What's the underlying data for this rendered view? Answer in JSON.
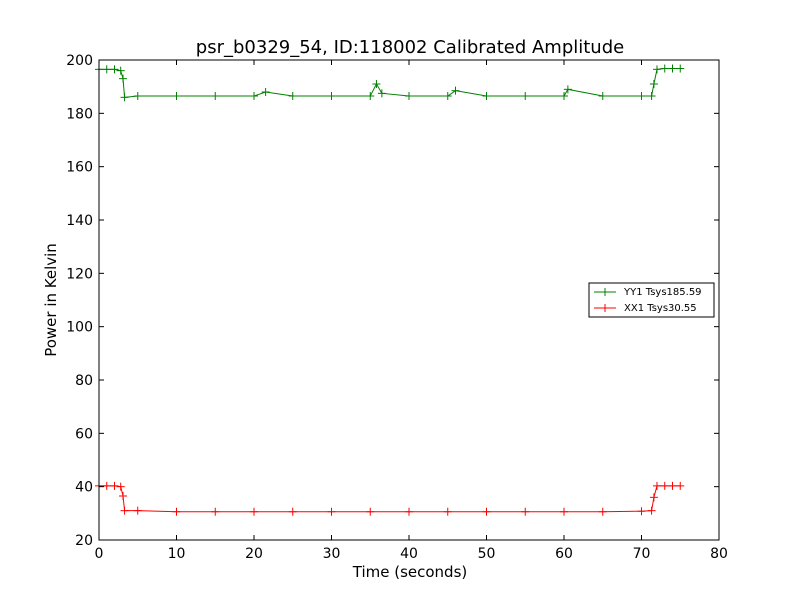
{
  "chart_data": {
    "type": "line",
    "title": "psr_b0329_54, ID:118002 Calibrated Amplitude",
    "xlabel": "Time (seconds)",
    "ylabel": "Power in Kelvin",
    "xlim": [
      0,
      80
    ],
    "ylim": [
      20,
      200
    ],
    "xticks": [
      "0",
      "10",
      "20",
      "30",
      "40",
      "50",
      "60",
      "70",
      "80"
    ],
    "yticks": [
      "20",
      "40",
      "60",
      "80",
      "100",
      "120",
      "140",
      "160",
      "180",
      "200"
    ],
    "grid": false,
    "legend_position": "center-right",
    "marker": "+",
    "series": [
      {
        "name": "YY1 Tsys185.59",
        "color": "#008000",
        "x": [
          0,
          1,
          2,
          2.8,
          3.1,
          3.3,
          5,
          10,
          15,
          20,
          21.5,
          25,
          30,
          35,
          35.8,
          36.5,
          40,
          45,
          46,
          50,
          55,
          60,
          60.5,
          65,
          70,
          71.3,
          71.6,
          72,
          73,
          74,
          75
        ],
        "values": [
          196.5,
          196.5,
          196.5,
          196,
          193,
          186,
          186.5,
          186.5,
          186.5,
          186.5,
          188,
          186.5,
          186.5,
          186.5,
          191,
          187.5,
          186.5,
          186.5,
          188.5,
          186.5,
          186.5,
          186.5,
          189,
          186.5,
          186.5,
          186.5,
          191,
          196.5,
          196.8,
          196.8,
          196.8
        ]
      },
      {
        "name": "XX1 Tsys30.55",
        "color": "#ff0000",
        "x": [
          0,
          1,
          2,
          2.8,
          3.1,
          3.3,
          5,
          10,
          15,
          20,
          25,
          30,
          35,
          40,
          45,
          50,
          55,
          60,
          65,
          70,
          71.3,
          71.6,
          72,
          73,
          74,
          75
        ],
        "values": [
          40.3,
          40.3,
          40.3,
          40,
          36.5,
          31,
          31,
          30.6,
          30.6,
          30.6,
          30.6,
          30.6,
          30.6,
          30.6,
          30.6,
          30.6,
          30.6,
          30.6,
          30.6,
          30.8,
          31,
          36,
          40.3,
          40.3,
          40.3,
          40.3
        ]
      }
    ]
  }
}
